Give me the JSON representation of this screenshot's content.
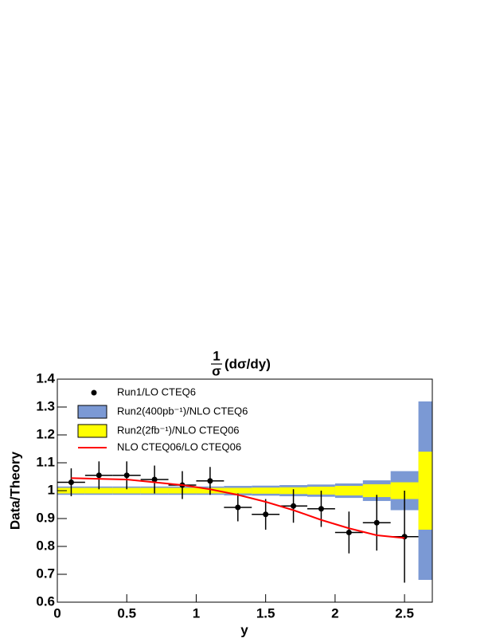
{
  "chart_data": {
    "type": "scatter",
    "title": {
      "numerator": "1",
      "denominator": "σ",
      "rest": "(dσ/dy)"
    },
    "x_label": "y",
    "y_label": "Data/Theory",
    "xlim": [
      0,
      2.7
    ],
    "ylim": [
      0.6,
      1.4
    ],
    "xticks": [
      0,
      0.5,
      1,
      1.5,
      2,
      2.5
    ],
    "yticks": [
      0.6,
      0.7,
      0.8,
      0.9,
      1,
      1.1,
      1.2,
      1.3,
      1.4
    ],
    "bands": [
      {
        "name": "Run2(400pb⁻¹)/NLO CTEQ6",
        "color": "#7b99d4",
        "center": 1,
        "bins": [
          0,
          0.2,
          0.4,
          0.6,
          0.8,
          1.0,
          1.2,
          1.4,
          1.6,
          1.8,
          2.0,
          2.2,
          2.4,
          2.6,
          2.7
        ],
        "errors": [
          0.015,
          0.015,
          0.015,
          0.015,
          0.015,
          0.015,
          0.017,
          0.018,
          0.02,
          0.022,
          0.026,
          0.037,
          0.07,
          0.32
        ]
      },
      {
        "name": "Run2(2fb⁻¹)/NLO CTEQ06",
        "color": "#ffff00",
        "center": 1,
        "bins": [
          0,
          0.2,
          0.4,
          0.6,
          0.8,
          1.0,
          1.2,
          1.4,
          1.6,
          1.8,
          2.0,
          2.2,
          2.4,
          2.6,
          2.7
        ],
        "errors": [
          0.01,
          0.01,
          0.01,
          0.01,
          0.01,
          0.01,
          0.01,
          0.011,
          0.012,
          0.014,
          0.017,
          0.023,
          0.03,
          0.14
        ]
      }
    ],
    "series": [
      {
        "name": "Run1/LO CTEQ6",
        "color": "#000000",
        "x": [
          0.1,
          0.3,
          0.5,
          0.7,
          0.9,
          1.1,
          1.3,
          1.5,
          1.7,
          1.9,
          2.1,
          2.3,
          2.5
        ],
        "values": [
          1.03,
          1.055,
          1.055,
          1.04,
          1.02,
          1.035,
          0.94,
          0.915,
          0.945,
          0.935,
          0.85,
          0.885,
          0.835
        ],
        "yerr": [
          0.05,
          0.05,
          0.05,
          0.05,
          0.05,
          0.05,
          0.05,
          0.055,
          0.06,
          0.065,
          0.075,
          0.1,
          0.165
        ],
        "xerr": [
          0.1,
          0.1,
          0.1,
          0.1,
          0.1,
          0.1,
          0.1,
          0.1,
          0.1,
          0.1,
          0.1,
          0.1,
          0.1
        ]
      },
      {
        "name": "NLO CTEQ06/LO CTEQ06",
        "color": "#ff0000",
        "x": [
          0.1,
          0.5,
          0.9,
          1.1,
          1.3,
          1.5,
          1.7,
          1.9,
          2.1,
          2.3,
          2.5
        ],
        "values": [
          1.045,
          1.04,
          1.02,
          1.005,
          0.985,
          0.96,
          0.93,
          0.895,
          0.865,
          0.84,
          0.83
        ]
      }
    ]
  }
}
